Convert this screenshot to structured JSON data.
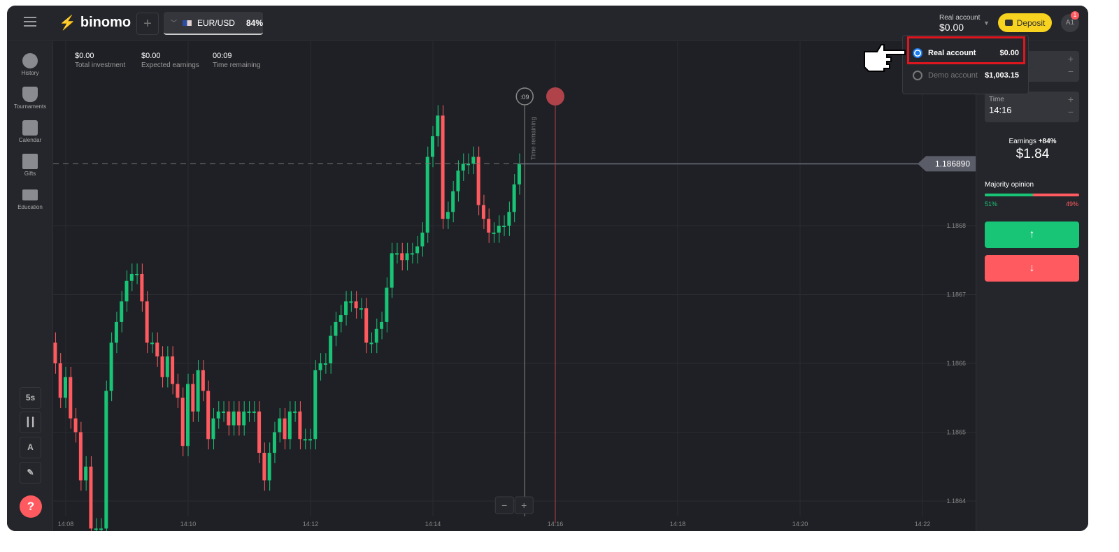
{
  "header": {
    "logo": "binomo",
    "add_label": "+",
    "asset": "EUR/USD",
    "payout": "84%",
    "account_label": "Real account",
    "account_balance": "$0.00",
    "deposit_label": "Deposit",
    "avatar": "A1",
    "notification_count": "1"
  },
  "sidebar": {
    "items": [
      {
        "label": "History",
        "icon": "clock-icon"
      },
      {
        "label": "Tournaments",
        "icon": "trophy-icon"
      },
      {
        "label": "Calendar",
        "icon": "calendar-icon"
      },
      {
        "label": "Gifts",
        "icon": "gift-icon"
      },
      {
        "label": "Education",
        "icon": "graduation-cap-icon"
      }
    ],
    "tools": {
      "timeframe": "5s"
    },
    "help": "?"
  },
  "stats": [
    {
      "value": "$0.00",
      "label": "Total investment"
    },
    {
      "value": "$0.00",
      "label": "Expected earnings"
    },
    {
      "value": "00:09",
      "label": "Time remaining"
    }
  ],
  "dropdown": {
    "options": [
      {
        "label": "Real account",
        "amount": "$0.00",
        "selected": true
      },
      {
        "label": "Demo account",
        "amount": "$1,003.15",
        "selected": false
      }
    ]
  },
  "trade": {
    "time_label": "Time",
    "time_value": "14:16",
    "earnings_label": "Earnings",
    "earnings_pct": "+84%",
    "earnings_value": "$1.84",
    "majority_label": "Majority opinion",
    "up_pct": "51%",
    "down_pct": "49%",
    "colors": {
      "up": "#18c476",
      "down": "#ff5a5f"
    }
  },
  "chart_data": {
    "type": "candlestick",
    "symbol": "EUR/USD",
    "interval": "5s",
    "start_time": "14:07:50",
    "current_price": "1.186890",
    "timer_label": ":09",
    "vline_label": "Time remaining",
    "x_ticks": [
      "14:08",
      "14:10",
      "14:12",
      "14:14",
      "14:16",
      "14:18",
      "14:20",
      "14:22"
    ],
    "y_ticks": [
      "1.1868",
      "1.1867",
      "1.1866",
      "1.1865",
      "1.1864"
    ],
    "closes": [
      1.1866,
      1.18655,
      1.18658,
      1.18652,
      1.1865,
      1.18643,
      1.18645,
      1.18636,
      1.18636,
      1.18636,
      1.18656,
      1.18663,
      1.18666,
      1.18669,
      1.18672,
      1.18673,
      1.18673,
      1.18669,
      1.18663,
      1.18663,
      1.18661,
      1.18658,
      1.18661,
      1.18657,
      1.18655,
      1.18648,
      1.18657,
      1.18653,
      1.18659,
      1.18656,
      1.18649,
      1.18652,
      1.18653,
      1.18653,
      1.18651,
      1.18653,
      1.18651,
      1.18653,
      1.18653,
      1.18653,
      1.18647,
      1.18643,
      1.18647,
      1.1865,
      1.18652,
      1.18649,
      1.18653,
      1.18653,
      1.18649,
      1.18649,
      1.18649,
      1.18659,
      1.1866,
      1.1866,
      1.18664,
      1.18666,
      1.18667,
      1.18669,
      1.18669,
      1.18668,
      1.18668,
      1.18663,
      1.18663,
      1.18665,
      1.18666,
      1.18671,
      1.18676,
      1.18676,
      1.18675,
      1.18676,
      1.18676,
      1.18677,
      1.18679,
      1.1869,
      1.18693,
      1.18696,
      1.18681,
      1.18682,
      1.18685,
      1.18688,
      1.18689,
      1.18689,
      1.1869,
      1.18683,
      1.18681,
      1.18679,
      1.18679,
      1.1868,
      1.1868,
      1.18682,
      1.18686,
      1.18689
    ]
  }
}
